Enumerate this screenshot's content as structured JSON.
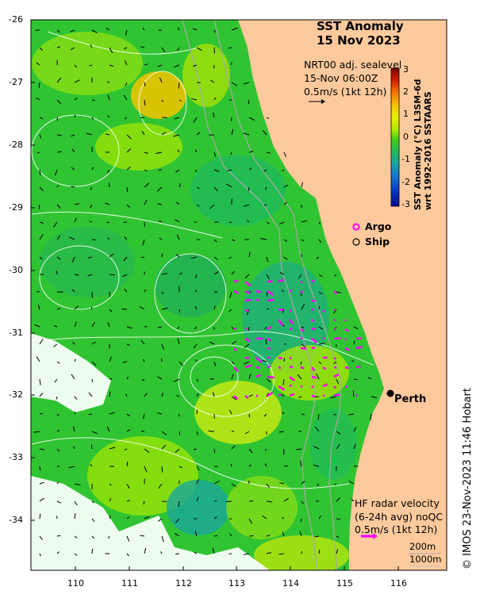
{
  "title": {
    "line1": "SST Anomaly",
    "line2": "15 Nov 2023"
  },
  "currents_info": {
    "line1": "NRT00 adj. sealevel",
    "line2": "15-Nov 06:00Z",
    "line3": "0.5m/s (1kt 12h)"
  },
  "colorbar": {
    "label_line1": "SST Anomaly (°C) L3SM-6d",
    "label_line2": "wrt 1992-2016 SSTAARS",
    "ticks": [
      "3",
      "2",
      "1",
      "0",
      "-1",
      "-2",
      "-3"
    ],
    "colors": [
      "#7a0000",
      "#d42000",
      "#f07a00",
      "#f5c400",
      "#e8f000",
      "#a8e800",
      "#3ccc1c",
      "#1fba5a",
      "#1aa79a",
      "#1478d0",
      "#0a3cc8",
      "#000a8a"
    ]
  },
  "legend": {
    "argo": "Argo",
    "ship": "Ship",
    "argo_color": "#ff00ff"
  },
  "places": {
    "city": "Perth"
  },
  "hf_radar": {
    "line1": "HF radar velocity",
    "line2": "(6-24h avg) noQC",
    "line3": "0.5m/s (1kt 12h)",
    "arrow_color": "#ff00ff"
  },
  "bathymetry": {
    "contour1": "200m",
    "contour2": "1000m"
  },
  "credit": "© IMOS 23-Nov-2023 11:46 Hobart",
  "axes": {
    "lat_ticks": [
      "-26",
      "-27",
      "-28",
      "-29",
      "-30",
      "-31",
      "-32",
      "-33",
      "-34"
    ],
    "lon_ticks": [
      "110",
      "111",
      "112",
      "113",
      "114",
      "115",
      "116"
    ]
  },
  "colors": {
    "land": "#fec99c",
    "ocean_base": "#30c432",
    "no_data": "#ffffff"
  }
}
